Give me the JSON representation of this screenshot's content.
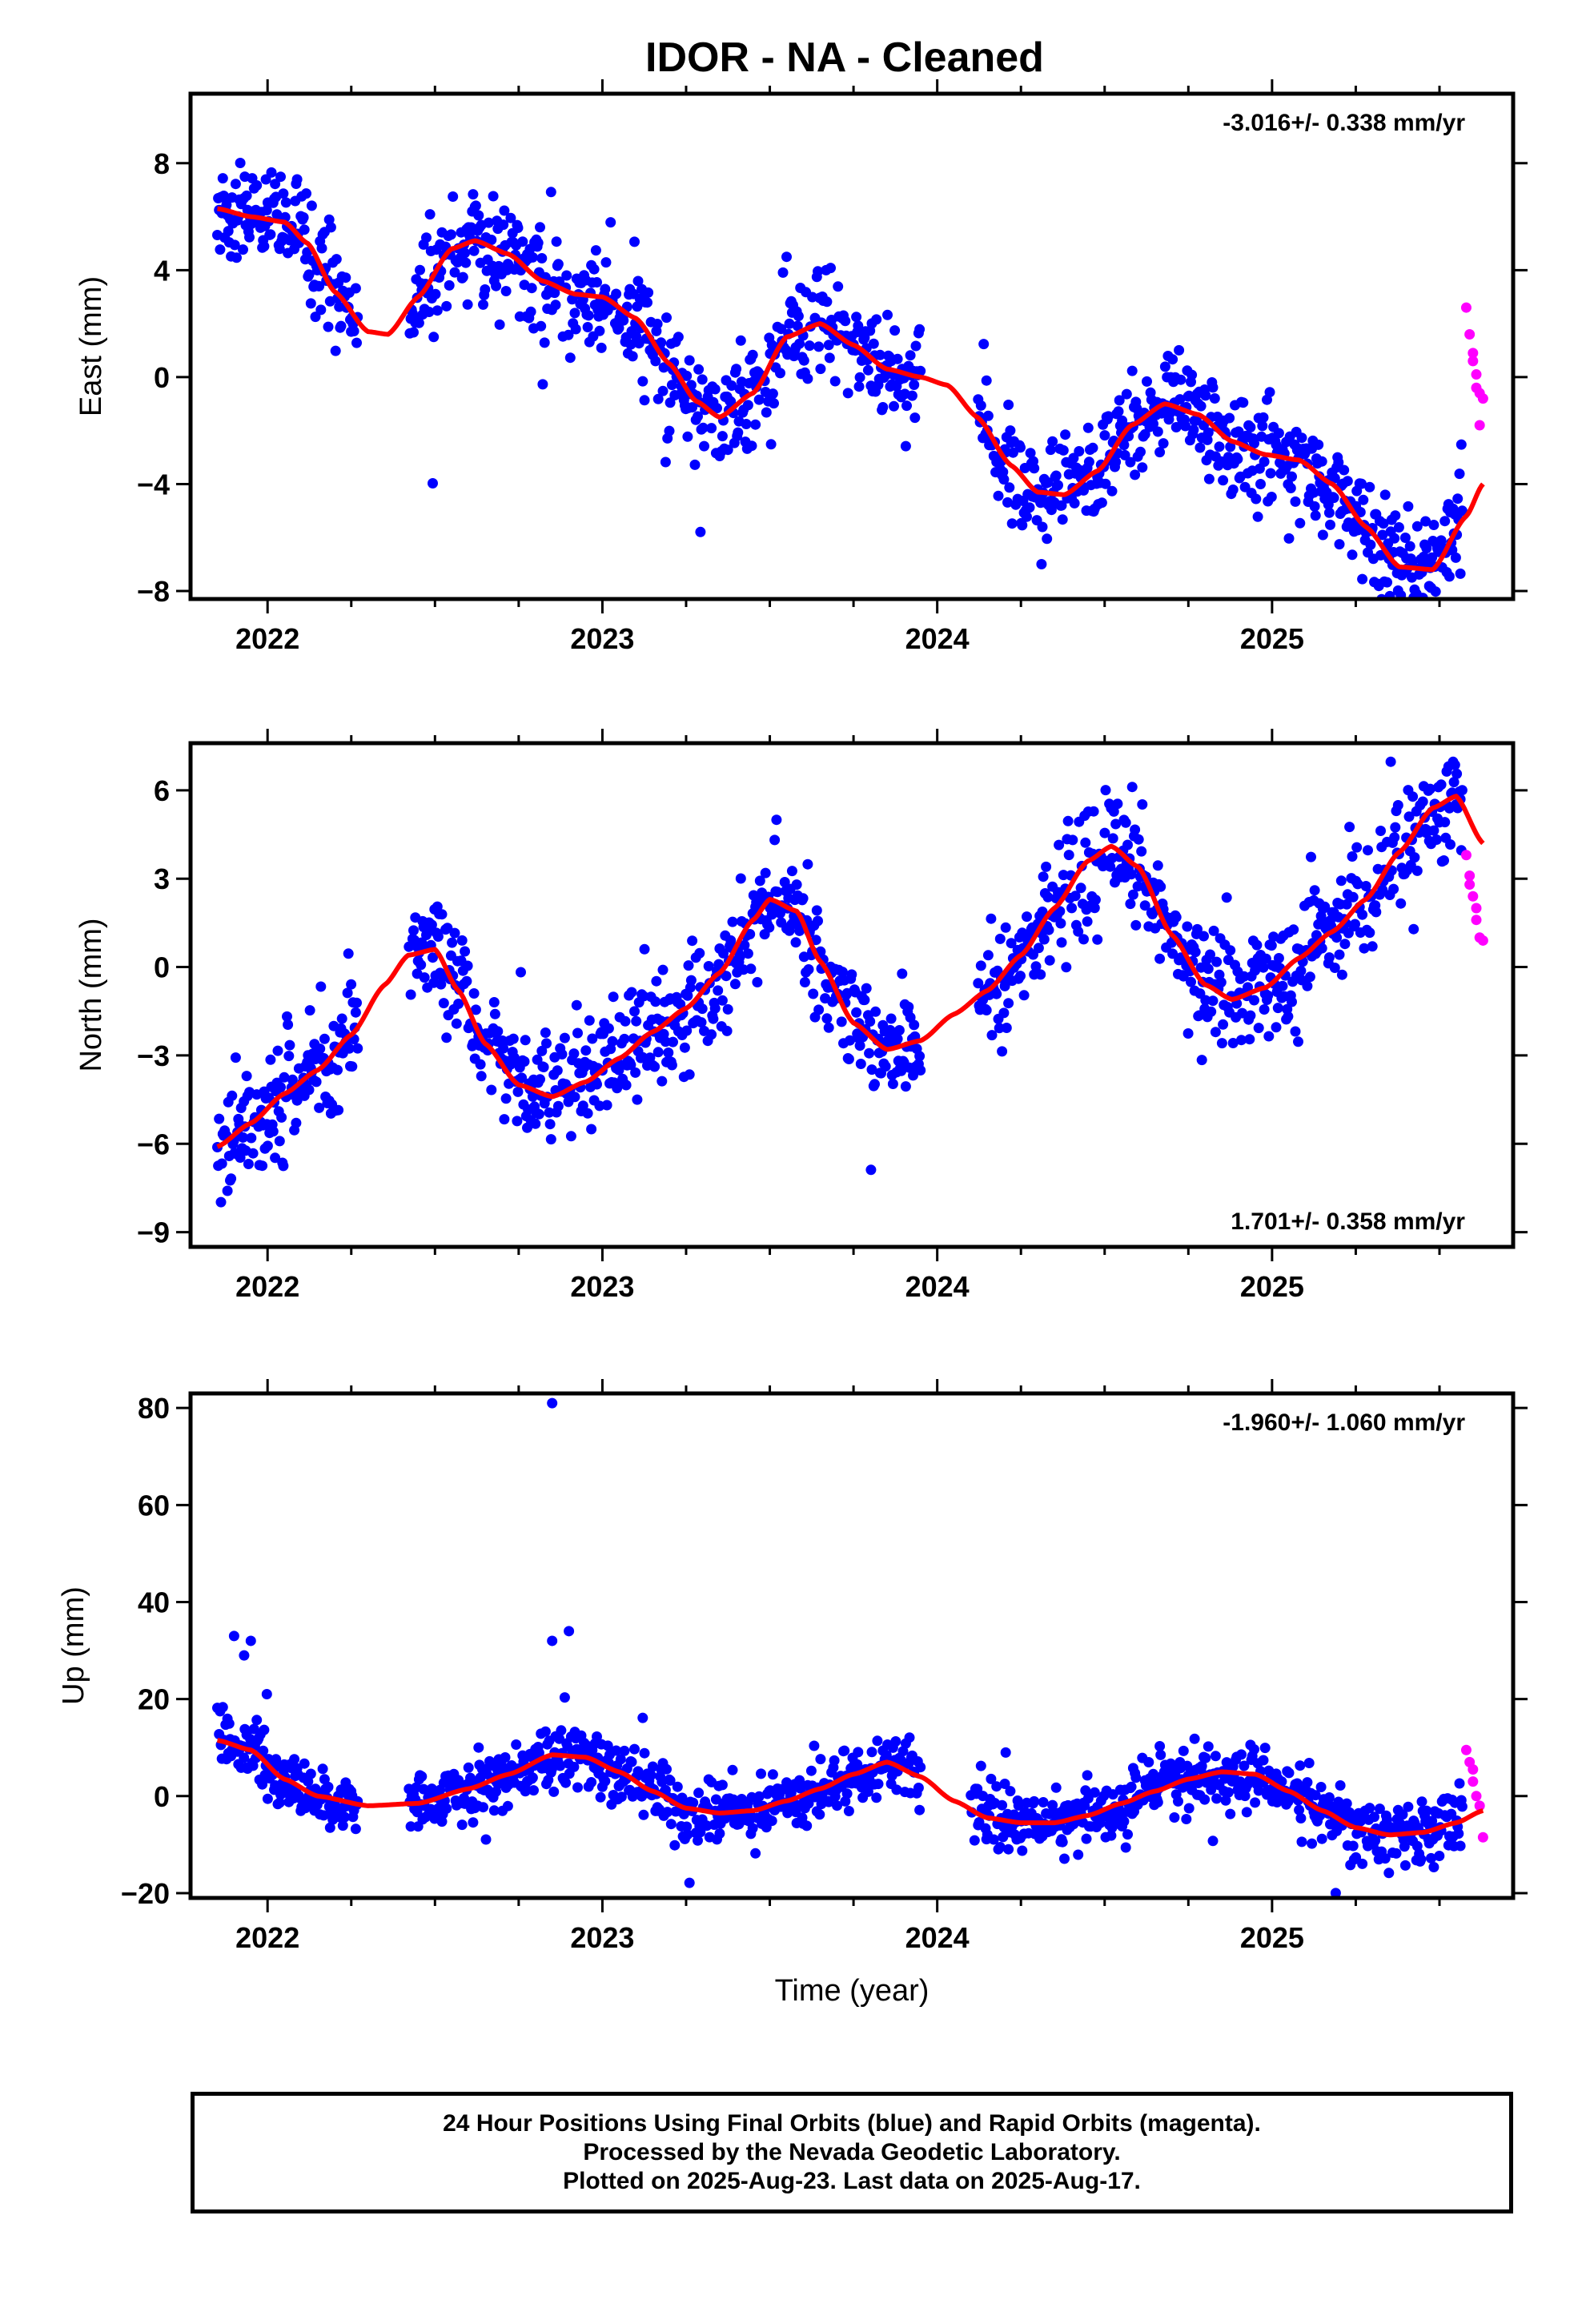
{
  "title": "IDOR  - NA - Cleaned",
  "footer": {
    "line1": "24 Hour Positions Using Final Orbits (blue) and Rapid Orbits (magenta).",
    "line2": "Processed by the Nevada Geodetic Laboratory.",
    "line3": "Plotted on 2025-Aug-23. Last data on 2025-Aug-17."
  },
  "colors": {
    "final": "#0000ff",
    "rapid": "#ff00ff",
    "fit": "#ff0000"
  },
  "chart_data": [
    {
      "type": "scatter",
      "ylabel": "East (mm)",
      "rate_label": "-3.016+/- 0.338 mm/yr",
      "rate_position": "top-right",
      "xlim": [
        2021.77,
        2025.72
      ],
      "ylim": [
        -8.3,
        10.6
      ],
      "yticks": [
        -8,
        -4,
        0,
        4,
        8
      ],
      "xticks": [
        2022,
        2023,
        2024,
        2025
      ],
      "ylabel_side": "left",
      "fit_curve": {
        "x": [
          2021.85,
          2021.95,
          2022.05,
          2022.12,
          2022.2,
          2022.3,
          2022.36,
          2022.45,
          2022.55,
          2022.62,
          2022.72,
          2022.82,
          2022.92,
          2023.0,
          2023.1,
          2023.2,
          2023.28,
          2023.35,
          2023.45,
          2023.55,
          2023.65,
          2023.75,
          2023.85,
          2023.95,
          2024.03,
          2024.12,
          2024.22,
          2024.3,
          2024.38,
          2024.48,
          2024.58,
          2024.68,
          2024.78,
          2024.88,
          2024.98,
          2025.08,
          2025.18,
          2025.28,
          2025.38,
          2025.48,
          2025.58,
          2025.63
        ],
        "y": [
          6.3,
          6.0,
          5.8,
          5.0,
          3.2,
          1.7,
          1.6,
          3.0,
          4.8,
          5.1,
          4.6,
          3.6,
          3.1,
          3.0,
          2.2,
          0.5,
          -0.9,
          -1.5,
          -0.6,
          1.5,
          2.0,
          1.2,
          0.3,
          0.0,
          -0.3,
          -1.5,
          -3.3,
          -4.3,
          -4.4,
          -3.5,
          -1.8,
          -1.0,
          -1.4,
          -2.4,
          -2.9,
          -3.1,
          -4.0,
          -5.6,
          -7.1,
          -7.2,
          -5.2,
          -4.0
        ]
      },
      "final_generator": "wobble around fit with occasional outliers (dense daily points)",
      "rapid_points": {
        "x": [
          2025.58,
          2025.59,
          2025.6,
          2025.6,
          2025.61,
          2025.61,
          2025.62,
          2025.62,
          2025.63
        ],
        "y": [
          2.6,
          1.6,
          0.9,
          0.6,
          0.1,
          -0.4,
          -0.6,
          -1.8,
          -0.8
        ]
      }
    },
    {
      "type": "scatter",
      "ylabel": "North (mm)",
      "rate_label": "1.701+/- 0.358 mm/yr",
      "rate_position": "bottom-right",
      "xlim": [
        2021.77,
        2025.72
      ],
      "ylim": [
        -9.5,
        7.6
      ],
      "yticks": [
        -9,
        -6,
        -3,
        0,
        3,
        6
      ],
      "xticks": [
        2022,
        2023,
        2024,
        2025
      ],
      "fit_curve": {
        "x": [
          2021.85,
          2021.95,
          2022.05,
          2022.15,
          2022.25,
          2022.35,
          2022.42,
          2022.5,
          2022.57,
          2022.65,
          2022.75,
          2022.85,
          2022.95,
          2023.05,
          2023.15,
          2023.25,
          2023.35,
          2023.45,
          2023.5,
          2023.58,
          2023.65,
          2023.75,
          2023.85,
          2023.95,
          2024.05,
          2024.15,
          2024.25,
          2024.35,
          2024.45,
          2024.52,
          2024.6,
          2024.7,
          2024.8,
          2024.88,
          2024.98,
          2025.08,
          2025.18,
          2025.28,
          2025.38,
          2025.48,
          2025.55,
          2025.63
        ],
        "y": [
          -6.1,
          -5.3,
          -4.3,
          -3.5,
          -2.3,
          -0.6,
          0.4,
          0.6,
          -0.8,
          -2.6,
          -4.0,
          -4.4,
          -3.9,
          -3.1,
          -2.2,
          -1.4,
          -0.2,
          1.6,
          2.3,
          1.9,
          0.2,
          -1.9,
          -2.8,
          -2.5,
          -1.6,
          -0.8,
          0.4,
          2.0,
          3.6,
          4.1,
          3.4,
          1.1,
          -0.6,
          -1.1,
          -0.7,
          0.3,
          1.2,
          2.3,
          3.9,
          5.4,
          5.8,
          4.2
        ]
      },
      "final_generator": "wobble around fit with occasional outliers (dense daily points)",
      "rapid_points": {
        "x": [
          2025.58,
          2025.59,
          2025.59,
          2025.6,
          2025.61,
          2025.61,
          2025.62,
          2025.63
        ],
        "y": [
          3.8,
          3.1,
          2.8,
          2.4,
          2.0,
          1.6,
          1.0,
          0.9
        ]
      }
    },
    {
      "type": "scatter",
      "ylabel": "Up (mm)",
      "xlabel": "Time (year)",
      "rate_label": "-1.960+/- 1.060 mm/yr",
      "rate_position": "top-right",
      "xlim": [
        2021.77,
        2025.72
      ],
      "ylim": [
        -21,
        83
      ],
      "yticks": [
        -20,
        0,
        20,
        40,
        60,
        80
      ],
      "xticks": [
        2022,
        2023,
        2024,
        2025
      ],
      "fit_curve": {
        "x": [
          2021.85,
          2021.95,
          2022.05,
          2022.15,
          2022.3,
          2022.45,
          2022.6,
          2022.72,
          2022.85,
          2022.95,
          2023.05,
          2023.15,
          2023.25,
          2023.35,
          2023.45,
          2023.55,
          2023.65,
          2023.75,
          2023.85,
          2023.95,
          2024.05,
          2024.15,
          2024.25,
          2024.35,
          2024.45,
          2024.55,
          2024.65,
          2024.75,
          2024.85,
          2024.95,
          2025.05,
          2025.15,
          2025.25,
          2025.35,
          2025.45,
          2025.55,
          2025.63
        ],
        "y": [
          11.5,
          9.5,
          3.5,
          0.0,
          -2.0,
          -1.5,
          1.5,
          4.5,
          8.5,
          8.0,
          5.0,
          1.0,
          -2.5,
          -3.5,
          -3.0,
          -1.0,
          1.5,
          4.5,
          7.0,
          4.0,
          -1.0,
          -4.5,
          -5.5,
          -5.5,
          -4.0,
          -1.5,
          1.0,
          3.5,
          5.0,
          4.5,
          1.0,
          -3.0,
          -6.5,
          -8.0,
          -7.5,
          -5.5,
          -3.0
        ]
      },
      "outliers": {
        "x": [
          2022.85,
          2021.9,
          2021.95,
          2022.85,
          2022.9,
          2021.93
        ],
        "y": [
          81,
          33,
          32,
          32,
          34,
          29
        ]
      },
      "final_generator": "wobble around fit with occasional outliers (dense daily points)",
      "rapid_points": {
        "x": [
          2025.58,
          2025.59,
          2025.6,
          2025.6,
          2025.61,
          2025.62,
          2025.63
        ],
        "y": [
          9.5,
          7.0,
          5.5,
          3.0,
          0.0,
          -2.0,
          -8.5
        ]
      }
    }
  ]
}
